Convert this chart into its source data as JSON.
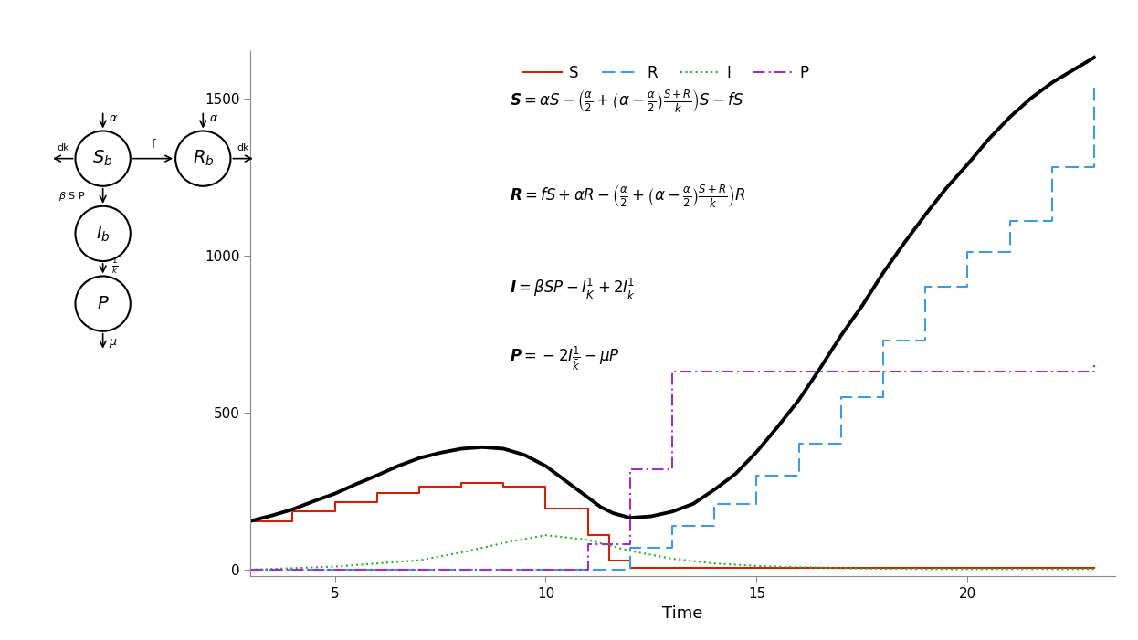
{
  "xlabel": "Time",
  "ylim": [
    -20,
    1650
  ],
  "xlim": [
    3,
    23.5
  ],
  "yticks": [
    0,
    500,
    1000,
    1500
  ],
  "xticks": [
    5,
    10,
    15,
    20
  ],
  "bg_color": "#ffffff",
  "S_color": "#cc2200",
  "R_color": "#4499dd",
  "I_color": "#33aa33",
  "P_color": "#9933bb",
  "total_color": "#000000",
  "S_x": [
    3,
    4,
    5,
    6,
    7,
    8,
    9,
    9,
    10,
    10,
    11,
    11,
    11.5,
    12,
    23
  ],
  "S_y": [
    155,
    185,
    215,
    245,
    265,
    275,
    265,
    265,
    195,
    195,
    110,
    110,
    30,
    5,
    5
  ],
  "R_x": [
    3,
    10,
    10,
    11,
    11,
    12,
    12,
    13,
    13,
    14,
    14,
    15,
    15,
    16,
    16,
    17,
    17,
    18,
    18,
    19,
    19,
    20,
    20,
    21,
    21,
    22,
    22,
    23
  ],
  "R_y": [
    0,
    0,
    0,
    0,
    0,
    70,
    70,
    140,
    140,
    210,
    210,
    300,
    300,
    400,
    400,
    550,
    550,
    730,
    730,
    900,
    900,
    1010,
    1010,
    1110,
    1110,
    1280,
    1280,
    1540
  ],
  "I_x": [
    3,
    5,
    7,
    8,
    9,
    10,
    11,
    12,
    13,
    14,
    15,
    16,
    17,
    18,
    19,
    20,
    21,
    22,
    23
  ],
  "I_y": [
    0,
    10,
    30,
    55,
    85,
    110,
    95,
    60,
    35,
    20,
    12,
    8,
    5,
    3,
    2,
    2,
    2,
    2,
    2
  ],
  "P_x": [
    3,
    10,
    10,
    11,
    11,
    12,
    12,
    13,
    13,
    23
  ],
  "P_y": [
    0,
    0,
    0,
    80,
    80,
    320,
    320,
    630,
    630,
    650
  ],
  "total_x": [
    3,
    3.5,
    4,
    4.5,
    5,
    5.5,
    6,
    6.5,
    7,
    7.5,
    8,
    8.5,
    9,
    9.5,
    10,
    10.3,
    10.6,
    11,
    11.3,
    11.6,
    12,
    12.5,
    13,
    13.5,
    14,
    14.5,
    15,
    15.5,
    16,
    16.5,
    17,
    17.5,
    18,
    18.5,
    19,
    19.5,
    20,
    20.5,
    21,
    21.5,
    22,
    22.5,
    23
  ],
  "total_y": [
    155,
    172,
    192,
    218,
    242,
    272,
    300,
    330,
    355,
    372,
    385,
    390,
    385,
    365,
    330,
    300,
    270,
    230,
    200,
    180,
    165,
    170,
    185,
    210,
    255,
    305,
    375,
    455,
    540,
    640,
    745,
    840,
    945,
    1040,
    1130,
    1215,
    1290,
    1370,
    1440,
    1500,
    1550,
    1590,
    1630
  ],
  "eq1": "$\\boldsymbol{S} = \\alpha S - \\left(\\frac{\\alpha}{2} + \\left(\\alpha - \\frac{\\alpha}{2}\\right)\\frac{S+R}{k}\\right)S - fS$",
  "eq2": "$\\boldsymbol{R} = fS + \\alpha R - \\left(\\frac{\\alpha}{2} + \\left(\\alpha - \\frac{\\alpha}{2}\\right)\\frac{S+R}{k}\\right)R$",
  "eq3": "$\\boldsymbol{I} = \\beta SP - I\\frac{1}{K} + 2I\\frac{1}{k}$",
  "eq4": "$\\boldsymbol{P} = -2I\\frac{1}{\\bar{k}} - \\mu P$"
}
